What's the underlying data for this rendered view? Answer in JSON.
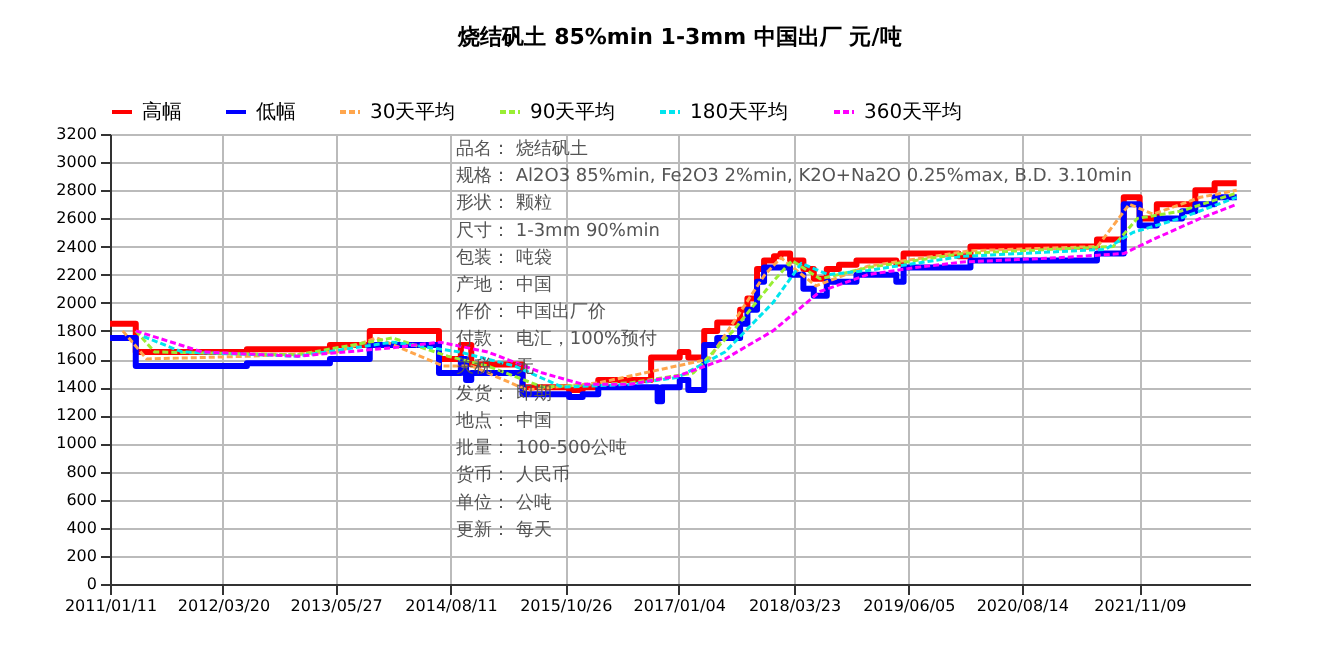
{
  "chart_data": {
    "type": "line",
    "title": "烧结矾土 85%min 1-3mm 中国出厂 元/吨",
    "annotations": [
      "品名：  烧结矾土",
      "规格：  Al2O3 85%min, Fe2O3 2%min, K2O+Na2O 0.25%max, B.D. 3.10min",
      "形状：  颗粒",
      "尺寸：  1-3mm 90%min",
      "包装：  吨袋",
      "产地：  中国",
      "作价：  中国出厂价",
      "付款：  电汇，100%预付",
      "关税：  无",
      "发货：  即期",
      "地点：  中国",
      "批量：  100-500公吨",
      "货币：  人民币",
      "单位：  公吨",
      "更新：  每天"
    ],
    "series": [
      {
        "name": "高幅",
        "type": "step",
        "color": "#ff0000",
        "x": [
          "2011-01-11",
          "2011-04-20",
          "2012-06-20",
          "2013-05-05",
          "2013-10-05",
          "2014-06-28",
          "2014-09-20",
          "2014-10-30",
          "2015-05-15",
          "2015-11-10",
          "2016-01-01",
          "2016-03-01",
          "2016-09-20",
          "2017-01-08",
          "2017-02-10",
          "2017-04-12",
          "2017-06-01",
          "2017-08-28",
          "2017-09-25",
          "2017-11-01",
          "2017-11-28",
          "2018-01-05",
          "2018-01-30",
          "2018-03-08",
          "2018-04-28",
          "2018-06-07",
          "2018-07-27",
          "2018-09-12",
          "2018-11-18",
          "2019-04-20",
          "2019-05-18",
          "2019-12-15",
          "2020-01-30",
          "2021-05-30",
          "2021-09-10",
          "2021-11-10",
          "2022-01-15",
          "2022-06-12",
          "2022-08-25",
          "2022-11-18"
        ],
        "values": [
          1850,
          1650,
          1670,
          1700,
          1800,
          1600,
          1700,
          1560,
          1400,
          1380,
          1400,
          1450,
          1610,
          1650,
          1610,
          1800,
          1860,
          1950,
          2030,
          2240,
          2300,
          2330,
          2350,
          2300,
          2240,
          2170,
          2240,
          2270,
          2300,
          2280,
          2350,
          2330,
          2400,
          2450,
          2750,
          2600,
          2700,
          2800,
          2850,
          2850
        ]
      },
      {
        "name": "低幅",
        "type": "step",
        "color": "#0000ff",
        "x": [
          "2011-01-11",
          "2011-04-20",
          "2012-06-20",
          "2013-05-05",
          "2013-10-05",
          "2014-06-28",
          "2014-09-20",
          "2014-10-10",
          "2014-10-30",
          "2015-05-15",
          "2015-11-10",
          "2016-01-01",
          "2016-03-01",
          "2016-10-15",
          "2016-11-01",
          "2017-01-08",
          "2017-02-10",
          "2017-04-12",
          "2017-06-01",
          "2017-08-28",
          "2017-09-25",
          "2017-11-01",
          "2017-11-28",
          "2018-03-08",
          "2018-04-28",
          "2018-06-07",
          "2018-07-27",
          "2018-11-18",
          "2019-04-20",
          "2019-05-18",
          "2020-01-30",
          "2021-05-30",
          "2021-09-10",
          "2021-11-10",
          "2022-01-15",
          "2022-04-22",
          "2022-06-12",
          "2022-08-25",
          "2022-11-18"
        ],
        "values": [
          1750,
          1550,
          1570,
          1600,
          1700,
          1500,
          1600,
          1450,
          1500,
          1350,
          1330,
          1350,
          1400,
          1300,
          1400,
          1450,
          1380,
          1700,
          1750,
          1850,
          1950,
          2150,
          2250,
          2200,
          2100,
          2050,
          2150,
          2200,
          2150,
          2250,
          2300,
          2350,
          2700,
          2550,
          2600,
          2650,
          2700,
          2750,
          2750
        ]
      },
      {
        "name": "30天平均",
        "type": "line",
        "line_style": "dashed",
        "color": "#ffa64d",
        "x": [
          "2011-03-01",
          "2011-06-01",
          "2012-07-01",
          "2013-06-01",
          "2013-11-01",
          "2014-07-15",
          "2014-11-01",
          "2015-06-01",
          "2016-03-01",
          "2017-05-01",
          "2017-12-01",
          "2018-02-01",
          "2018-06-15",
          "2019-01-01",
          "2020-02-01",
          "2021-06-01",
          "2021-10-01",
          "2022-01-01",
          "2022-07-01",
          "2022-11-18"
        ],
        "values": [
          1800,
          1600,
          1620,
          1650,
          1750,
          1550,
          1550,
          1380,
          1430,
          1600,
          2200,
          2320,
          2120,
          2260,
          2370,
          2400,
          2700,
          2630,
          2750,
          2800
        ]
      },
      {
        "name": "90天平均",
        "type": "line",
        "line_style": "dashed",
        "color": "#99ee33",
        "x": [
          "2011-04-20",
          "2011-07-01",
          "2013-01-01",
          "2014-01-01",
          "2014-08-01",
          "2015-01-01",
          "2015-08-01",
          "2016-07-01",
          "2017-03-01",
          "2017-08-01",
          "2018-01-01",
          "2018-03-15",
          "2018-07-01",
          "2019-01-01",
          "2020-01-01",
          "2021-08-01",
          "2021-11-01",
          "2022-04-15",
          "2022-11-18"
        ],
        "values": [
          1800,
          1650,
          1630,
          1750,
          1620,
          1550,
          1400,
          1430,
          1500,
          1800,
          2150,
          2300,
          2170,
          2250,
          2350,
          2400,
          2600,
          2650,
          2780
        ]
      },
      {
        "name": "180天平均",
        "type": "line",
        "line_style": "dashed",
        "color": "#00e5ee",
        "x": [
          "2011-05-20",
          "2011-10-15",
          "2013-01-01",
          "2014-01-01",
          "2014-09-15",
          "2015-04-15",
          "2015-10-15",
          "2016-07-01",
          "2017-01-01",
          "2017-07-01",
          "2018-01-01",
          "2018-04-20",
          "2018-08-01",
          "2019-01-01",
          "2020-01-01",
          "2021-07-01",
          "2021-10-15",
          "2022-04-15",
          "2022-11-18"
        ],
        "values": [
          1760,
          1650,
          1620,
          1720,
          1650,
          1550,
          1400,
          1420,
          1470,
          1650,
          2000,
          2280,
          2200,
          2230,
          2330,
          2380,
          2500,
          2600,
          2750
        ]
      },
      {
        "name": "360天平均",
        "type": "line",
        "line_style": "dashed",
        "color": "#ff00ff",
        "x": [
          "2011-04-20",
          "2012-01-01",
          "2013-01-01",
          "2014-01-01",
          "2014-07-01",
          "2015-01-01",
          "2015-08-01",
          "2016-01-01",
          "2016-07-01",
          "2017-01-01",
          "2017-07-01",
          "2018-01-01",
          "2018-07-01",
          "2019-01-01",
          "2019-07-01",
          "2020-01-01",
          "2021-01-01",
          "2021-09-10",
          "2022-01-01",
          "2022-07-01",
          "2022-11-18"
        ],
        "values": [
          1800,
          1650,
          1620,
          1680,
          1720,
          1650,
          1500,
          1420,
          1420,
          1480,
          1600,
          1800,
          2080,
          2200,
          2250,
          2290,
          2320,
          2350,
          2450,
          2600,
          2700
        ]
      }
    ],
    "xlim": [
      "2011-01-11",
      "2023-01-08"
    ],
    "xticks": [
      {
        "value": "2011-01-11",
        "label": "2011/01/11"
      },
      {
        "value": "2012-03-20",
        "label": "2012/03/20"
      },
      {
        "value": "2013-05-27",
        "label": "2013/05/27"
      },
      {
        "value": "2014-08-11",
        "label": "2014/08/11"
      },
      {
        "value": "2015-10-26",
        "label": "2015/10/26"
      },
      {
        "value": "2017-01-04",
        "label": "2017/01/04"
      },
      {
        "value": "2018-03-23",
        "label": "2018/03/23"
      },
      {
        "value": "2019-06-05",
        "label": "2019/06/05"
      },
      {
        "value": "2020-08-14",
        "label": "2020/08/14"
      },
      {
        "value": "2021-11-09",
        "label": "2021/11/09"
      }
    ],
    "ylim": [
      0,
      3200
    ],
    "yticks": [
      0,
      200,
      400,
      600,
      800,
      1000,
      1200,
      1400,
      1600,
      1800,
      2000,
      2200,
      2400,
      2600,
      2800,
      3000,
      3200
    ],
    "grid": true,
    "legend": "top",
    "marker": "none"
  }
}
